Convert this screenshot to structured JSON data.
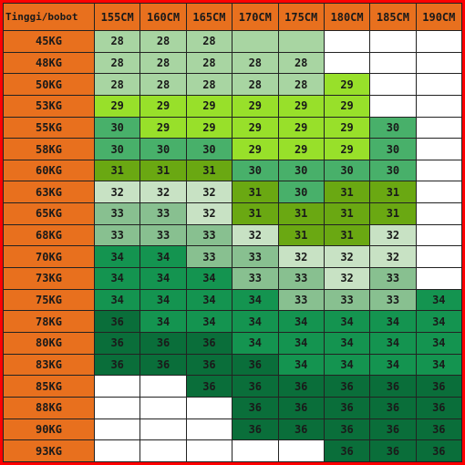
{
  "title": "Tinggi/bobot",
  "columns": [
    "155CM",
    "160CM",
    "165CM",
    "170CM",
    "175CM",
    "180CM",
    "185CM",
    "190CM"
  ],
  "rows": [
    {
      "weight": "45KG",
      "values": [
        "28",
        "28",
        "28",
        "",
        "",
        "",
        "",
        ""
      ],
      "colors": [
        "#a8d5a2",
        "#a8d5a2",
        "#a8d5a2",
        "#a8d5a2",
        "#a8d5a2",
        "#ffffff",
        "#ffffff",
        "#ffffff"
      ]
    },
    {
      "weight": "48KG",
      "values": [
        "28",
        "28",
        "28",
        "28",
        "28",
        "",
        "",
        ""
      ],
      "colors": [
        "#a8d5a2",
        "#a8d5a2",
        "#a8d5a2",
        "#a8d5a2",
        "#a8d5a2",
        "#ffffff",
        "#ffffff",
        "#ffffff"
      ]
    },
    {
      "weight": "50KG",
      "values": [
        "28",
        "28",
        "28",
        "28",
        "28",
        "29",
        "",
        ""
      ],
      "colors": [
        "#a8d5a2",
        "#a8d5a2",
        "#a8d5a2",
        "#a8d5a2",
        "#a8d5a2",
        "#98e02a",
        "#ffffff",
        "#ffffff"
      ]
    },
    {
      "weight": "53KG",
      "values": [
        "29",
        "29",
        "29",
        "29",
        "29",
        "29",
        "",
        ""
      ],
      "colors": [
        "#98e02a",
        "#98e02a",
        "#98e02a",
        "#98e02a",
        "#98e02a",
        "#98e02a",
        "#ffffff",
        "#ffffff"
      ]
    },
    {
      "weight": "55KG",
      "values": [
        "30",
        "29",
        "29",
        "29",
        "29",
        "29",
        "30",
        ""
      ],
      "colors": [
        "#48b06a",
        "#98e02a",
        "#98e02a",
        "#98e02a",
        "#98e02a",
        "#98e02a",
        "#48b06a",
        "#ffffff"
      ]
    },
    {
      "weight": "58KG",
      "values": [
        "30",
        "30",
        "30",
        "29",
        "29",
        "29",
        "30",
        ""
      ],
      "colors": [
        "#48b06a",
        "#48b06a",
        "#48b06a",
        "#98e02a",
        "#98e02a",
        "#98e02a",
        "#48b06a",
        "#ffffff"
      ]
    },
    {
      "weight": "60KG",
      "values": [
        "31",
        "31",
        "31",
        "30",
        "30",
        "30",
        "30",
        ""
      ],
      "colors": [
        "#6aa812",
        "#6aa812",
        "#6aa812",
        "#48b06a",
        "#48b06a",
        "#48b06a",
        "#48b06a",
        "#ffffff"
      ]
    },
    {
      "weight": "63KG",
      "values": [
        "32",
        "32",
        "32",
        "31",
        "30",
        "31",
        "31",
        ""
      ],
      "colors": [
        "#c8e2c4",
        "#c8e2c4",
        "#c8e2c4",
        "#6aa812",
        "#48b06a",
        "#6aa812",
        "#6aa812",
        "#ffffff"
      ]
    },
    {
      "weight": "65KG",
      "values": [
        "33",
        "33",
        "32",
        "31",
        "31",
        "31",
        "31",
        ""
      ],
      "colors": [
        "#88c090",
        "#88c090",
        "#c8e2c4",
        "#6aa812",
        "#6aa812",
        "#6aa812",
        "#6aa812",
        "#ffffff"
      ]
    },
    {
      "weight": "68KG",
      "values": [
        "33",
        "33",
        "33",
        "32",
        "31",
        "31",
        "32",
        ""
      ],
      "colors": [
        "#88c090",
        "#88c090",
        "#88c090",
        "#c8e2c4",
        "#6aa812",
        "#6aa812",
        "#c8e2c4",
        "#ffffff"
      ]
    },
    {
      "weight": "70KG",
      "values": [
        "34",
        "34",
        "33",
        "33",
        "32",
        "32",
        "32",
        ""
      ],
      "colors": [
        "#149450",
        "#149450",
        "#88c090",
        "#88c090",
        "#c8e2c4",
        "#c8e2c4",
        "#c8e2c4",
        "#ffffff"
      ]
    },
    {
      "weight": "73KG",
      "values": [
        "34",
        "34",
        "34",
        "33",
        "33",
        "32",
        "33",
        ""
      ],
      "colors": [
        "#149450",
        "#149450",
        "#149450",
        "#88c090",
        "#88c090",
        "#c8e2c4",
        "#88c090",
        "#ffffff"
      ]
    },
    {
      "weight": "75KG",
      "values": [
        "34",
        "34",
        "34",
        "34",
        "33",
        "33",
        "33",
        "34"
      ],
      "colors": [
        "#149450",
        "#149450",
        "#149450",
        "#149450",
        "#88c090",
        "#88c090",
        "#88c090",
        "#149450"
      ]
    },
    {
      "weight": "78KG",
      "values": [
        "36",
        "34",
        "34",
        "34",
        "34",
        "34",
        "34",
        "34"
      ],
      "colors": [
        "#0a6e3a",
        "#149450",
        "#149450",
        "#149450",
        "#149450",
        "#149450",
        "#149450",
        "#149450"
      ]
    },
    {
      "weight": "80KG",
      "values": [
        "36",
        "36",
        "36",
        "34",
        "34",
        "34",
        "34",
        "34"
      ],
      "colors": [
        "#0a6e3a",
        "#0a6e3a",
        "#0a6e3a",
        "#149450",
        "#149450",
        "#149450",
        "#149450",
        "#149450"
      ]
    },
    {
      "weight": "83KG",
      "values": [
        "36",
        "36",
        "36",
        "36",
        "34",
        "34",
        "34",
        "34"
      ],
      "colors": [
        "#0a6e3a",
        "#0a6e3a",
        "#0a6e3a",
        "#0a6e3a",
        "#149450",
        "#149450",
        "#149450",
        "#149450"
      ]
    },
    {
      "weight": "85KG",
      "values": [
        "",
        "",
        "36",
        "36",
        "36",
        "36",
        "36",
        "36"
      ],
      "colors": [
        "#ffffff",
        "#ffffff",
        "#0a6e3a",
        "#0a6e3a",
        "#0a6e3a",
        "#0a6e3a",
        "#0a6e3a",
        "#0a6e3a"
      ]
    },
    {
      "weight": "88KG",
      "values": [
        "",
        "",
        "",
        "36",
        "36",
        "36",
        "36",
        "36"
      ],
      "colors": [
        "#ffffff",
        "#ffffff",
        "#ffffff",
        "#0a6e3a",
        "#0a6e3a",
        "#0a6e3a",
        "#0a6e3a",
        "#0a6e3a"
      ]
    },
    {
      "weight": "90KG",
      "values": [
        "",
        "",
        "",
        "36",
        "36",
        "36",
        "36",
        "36"
      ],
      "colors": [
        "#ffffff",
        "#ffffff",
        "#ffffff",
        "#0a6e3a",
        "#0a6e3a",
        "#0a6e3a",
        "#0a6e3a",
        "#0a6e3a"
      ]
    },
    {
      "weight": "93KG",
      "values": [
        "",
        "",
        "",
        "",
        "",
        "36",
        "36",
        "36"
      ],
      "colors": [
        "#ffffff",
        "#ffffff",
        "#ffffff",
        "#ffffff",
        "#ffffff",
        "#0a6e3a",
        "#0a6e3a",
        "#0a6e3a"
      ]
    }
  ],
  "colors": {
    "frame": "#ff0000",
    "header": "#e8701e",
    "size_28": "#a8d5a2",
    "size_29": "#98e02a",
    "size_30": "#48b06a",
    "size_31": "#6aa812",
    "size_32": "#c8e2c4",
    "size_33": "#88c090",
    "size_34": "#149450",
    "size_36": "#0a6e3a",
    "empty": "#ffffff"
  }
}
